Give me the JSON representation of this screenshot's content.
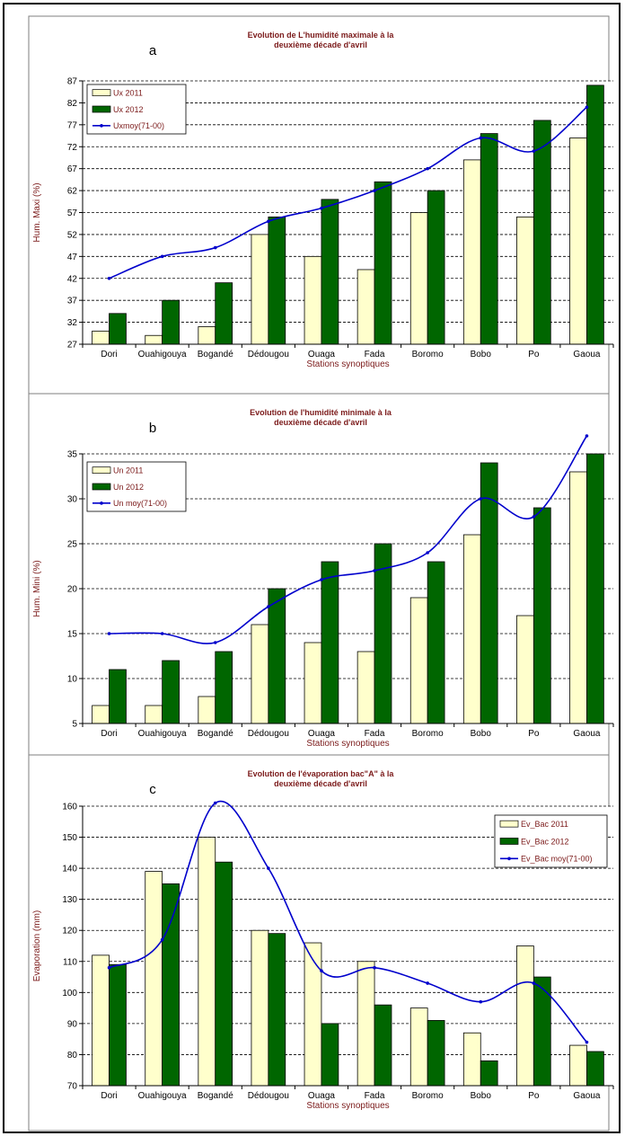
{
  "charts": [
    {
      "panel_letter": "a",
      "title_line1": "Evolution de L'humidité maximale à la",
      "title_line2": "deuxième décade d'avril",
      "legend_labels": [
        "Ux 2011",
        "Ux 2012",
        "Uxmoy(71-00)"
      ]
    },
    {
      "panel_letter": "b",
      "title_line1": "Evolution de l'humidité minimale à la",
      "title_line2": "deuxième décade d'avril",
      "legend_labels": [
        "Un 2011",
        "Un 2012",
        "Un moy(71-00)"
      ]
    },
    {
      "panel_letter": "c",
      "title_line1": "Evolution de l'évaporation bac\"A\" à la",
      "title_line2": "deuxième décade d'avril",
      "legend_labels": [
        "Ev_Bac 2011",
        "Ev_Bac 2012",
        "Ev_Bac moy(71-00)"
      ]
    }
  ],
  "colors": {
    "bar_2011": "#ffffcc",
    "bar_2012": "#006600",
    "line_mean": "#0000cc",
    "title_text": "#7b1a1a"
  },
  "chart_data": [
    {
      "type": "bar",
      "title": "Evolution de L'humidité maximale à la deuxième décade d'avril",
      "xlabel": "Stations synoptiques",
      "ylabel": "Hum. Maxi (%)",
      "categories": [
        "Dori",
        "Ouahigouya",
        "Bogandé",
        "Dédougou",
        "Ouaga",
        "Fada",
        "Boromo",
        "Bobo",
        "Po",
        "Gaoua"
      ],
      "ylim": [
        27,
        87
      ],
      "yticks": [
        27,
        32,
        37,
        42,
        47,
        52,
        57,
        62,
        67,
        72,
        77,
        82,
        87
      ],
      "grid": true,
      "legend_position": "top-left",
      "series": [
        {
          "name": "Ux 2011",
          "kind": "bar",
          "values": [
            30,
            29,
            31,
            52,
            47,
            44,
            57,
            69,
            56,
            74
          ]
        },
        {
          "name": "Ux 2012",
          "kind": "bar",
          "values": [
            34,
            37,
            41,
            56,
            60,
            64,
            62,
            75,
            78,
            86
          ]
        },
        {
          "name": "Uxmoy(71-00)",
          "kind": "line",
          "values": [
            42,
            47,
            49,
            55,
            58,
            62,
            67,
            74,
            71,
            81
          ]
        }
      ]
    },
    {
      "type": "bar",
      "title": "Evolution de l'humidité minimale à la deuxième décade d'avril",
      "xlabel": "Stations synoptiques",
      "ylabel": "Hum. Mini (%)",
      "categories": [
        "Dori",
        "Ouahigouya",
        "Bogandé",
        "Dédougou",
        "Ouaga",
        "Fada",
        "Boromo",
        "Bobo",
        "Po",
        "Gaoua"
      ],
      "ylim": [
        5,
        35
      ],
      "yticks": [
        5,
        10,
        15,
        20,
        25,
        30,
        35
      ],
      "grid": true,
      "legend_position": "top-left",
      "series": [
        {
          "name": "Un 2011",
          "kind": "bar",
          "values": [
            7,
            7,
            8,
            16,
            14,
            13,
            19,
            26,
            17,
            33
          ]
        },
        {
          "name": "Un 2012",
          "kind": "bar",
          "values": [
            11,
            12,
            13,
            20,
            23,
            25,
            23,
            34,
            29,
            35
          ]
        },
        {
          "name": "Un moy(71-00)",
          "kind": "line",
          "values": [
            15,
            15,
            14,
            18,
            21,
            22,
            24,
            30,
            28,
            37
          ]
        }
      ]
    },
    {
      "type": "bar",
      "title": "Evolution de l'évaporation bac\"A\" à la deuxième décade d'avril",
      "xlabel": "Stations synoptiques",
      "ylabel": "Evaporation (mm)",
      "categories": [
        "Dori",
        "Ouahigouya",
        "Bogandé",
        "Dédougou",
        "Ouaga",
        "Fada",
        "Boromo",
        "Bobo",
        "Po",
        "Gaoua"
      ],
      "ylim": [
        70,
        160
      ],
      "yticks": [
        70,
        80,
        90,
        100,
        110,
        120,
        130,
        140,
        150,
        160
      ],
      "grid": true,
      "legend_position": "top-right",
      "series": [
        {
          "name": "Ev_Bac 2011",
          "kind": "bar",
          "values": [
            112,
            139,
            150,
            120,
            116,
            110,
            95,
            87,
            115,
            83
          ]
        },
        {
          "name": "Ev_Bac 2012",
          "kind": "bar",
          "values": [
            109,
            135,
            142,
            119,
            90,
            96,
            91,
            78,
            105,
            81
          ]
        },
        {
          "name": "Ev_Bac moy(71-00)",
          "kind": "line",
          "values": [
            108,
            117,
            161,
            140,
            107,
            108,
            103,
            97,
            103,
            84
          ]
        }
      ]
    }
  ]
}
